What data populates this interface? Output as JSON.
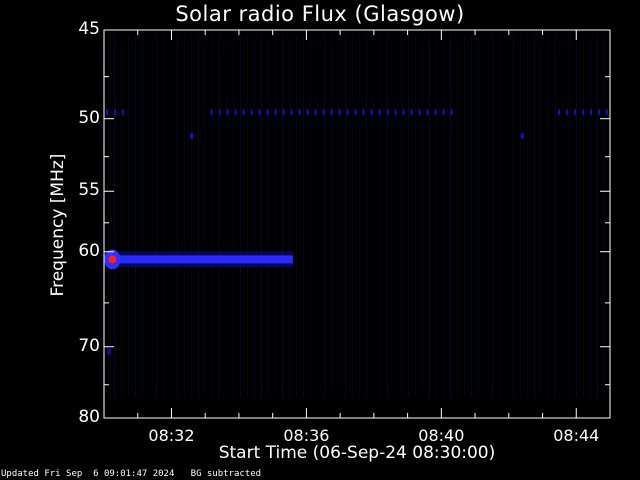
{
  "chart_data": {
    "type": "heatmap",
    "title": "Solar radio Flux (Glasgow)",
    "xlabel": "Start Time (06-Sep-24 08:30:00)",
    "ylabel": "Frequency [MHz]",
    "x_tick_labels": [
      "08:32",
      "08:36",
      "08:40",
      "08:44"
    ],
    "x_ticks_minutes_after_0830": [
      2,
      6,
      10,
      14
    ],
    "xlim_minutes_after_0830": [
      0,
      15
    ],
    "y_tick_labels": [
      "45",
      "50",
      "55",
      "60",
      "70",
      "80"
    ],
    "y_ticks_mhz": [
      45,
      50,
      55,
      60,
      70,
      80
    ],
    "ylim_mhz": [
      45,
      80
    ],
    "y_scale": "reciprocal",
    "features": [
      {
        "kind": "band",
        "freq_mhz": 60.7,
        "t_start": 0.0,
        "t_end": 5.6,
        "intensity": "medium"
      },
      {
        "kind": "hotspot",
        "freq_mhz": 60.7,
        "t": 0.25,
        "intensity": "high"
      },
      {
        "kind": "dotted-line",
        "freq_mhz": 49.6,
        "t_start": 0.0,
        "t_end": 0.75,
        "intensity": "low"
      },
      {
        "kind": "dotted-line",
        "freq_mhz": 49.6,
        "t_start": 3.1,
        "t_end": 10.4,
        "intensity": "low"
      },
      {
        "kind": "dotted-line",
        "freq_mhz": 49.6,
        "t_start": 13.4,
        "t_end": 15.0,
        "intensity": "low"
      },
      {
        "kind": "dot",
        "freq_mhz": 51.1,
        "t": 2.6,
        "intensity": "low"
      },
      {
        "kind": "dot",
        "freq_mhz": 51.1,
        "t": 12.4,
        "intensity": "low"
      },
      {
        "kind": "dot",
        "freq_mhz": 70.6,
        "t": 0.15,
        "intensity": "low"
      }
    ],
    "colors": {
      "background": "#000000",
      "low": "#1010c0",
      "medium": "#2a2aff",
      "high": "#ff2020",
      "axes": "#ffffff"
    }
  },
  "footer": "Updated Fri Sep  6 09:01:47 2024   BG subtracted"
}
